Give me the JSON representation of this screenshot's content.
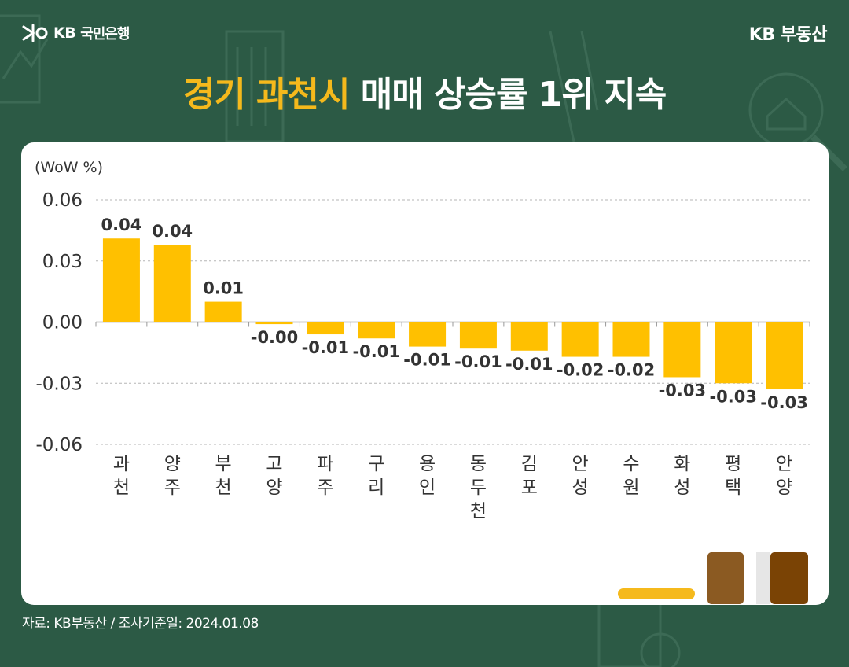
{
  "header": {
    "bank_brand": "KB",
    "bank_name": "국민은행",
    "right_brand": "KB 부동산"
  },
  "headline": {
    "highlight": "경기 과천시",
    "rest": " 매매 상승률 1위 지속"
  },
  "colors": {
    "background": "#2c5a45",
    "accent": "#f5b91c",
    "bar": "#ffc000"
  },
  "icons": [
    "kb-star-logo",
    "house-magnifier-icon",
    "ruler-icon",
    "dollar-icon",
    "calculator-icon"
  ],
  "chart_data": {
    "type": "bar",
    "ylabel": "(WoW %)",
    "ylim": [
      -0.06,
      0.06
    ],
    "yticks": [
      "0.06",
      "0.03",
      "0.00",
      "-0.03",
      "-0.06"
    ],
    "categories": [
      "과천",
      "양주",
      "부천",
      "고양",
      "파주",
      "구리",
      "용인",
      "동두천",
      "김포",
      "안성",
      "수원",
      "화성",
      "평택",
      "안양"
    ],
    "values": [
      0.041,
      0.038,
      0.01,
      -0.001,
      -0.006,
      -0.008,
      -0.012,
      -0.013,
      -0.014,
      -0.017,
      -0.017,
      -0.027,
      -0.03,
      -0.033
    ],
    "labels": [
      "0.04",
      "0.04",
      "0.01",
      "-0.00",
      "-0.01",
      "-0.01",
      "-0.01",
      "-0.01",
      "-0.01",
      "-0.02",
      "-0.02",
      "-0.03",
      "-0.03",
      "-0.03"
    ],
    "grid": true
  },
  "footer": {
    "source": "자료: KB부동산 / 조사기준일: 2024.01.08"
  }
}
